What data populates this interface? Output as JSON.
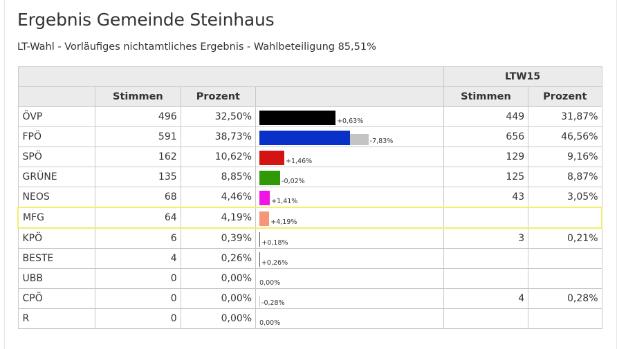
{
  "title": "Ergebnis Gemeinde Steinhaus",
  "subtitle": "LT-Wahl - Vorläufiges nichtamtliches Ergebnis - Wahlbeteiligung 85,51%",
  "header": {
    "group_right": "LTW15",
    "stimmen": "Stimmen",
    "prozent": "Prozent",
    "stimmen_prev": "Stimmen",
    "prozent_prev": "Prozent"
  },
  "chart_data": {
    "type": "bar",
    "categories": [
      "ÖVP",
      "FPÖ",
      "SPÖ",
      "GRÜNE",
      "NEOS",
      "MFG",
      "KPÖ",
      "BESTE",
      "UBB",
      "CPÖ",
      "R"
    ],
    "series": [
      {
        "name": "",
        "values": [
          32.5,
          38.73,
          10.62,
          8.85,
          4.46,
          4.19,
          0.39,
          0.26,
          0.0,
          0.0,
          0.0
        ]
      },
      {
        "name": "LTW15",
        "values": [
          31.87,
          46.56,
          9.16,
          8.87,
          3.05,
          0,
          0.21,
          0,
          0,
          0.28,
          0
        ]
      }
    ],
    "colors": [
      "#000000",
      "#0a31c7",
      "#d41313",
      "#2f9a06",
      "#f014e6",
      "#f7957a",
      "#555555",
      "#555555",
      "#555555",
      "#555555",
      "#555555"
    ],
    "prev_color": "#c4c4c4"
  },
  "rows": [
    {
      "party": "ÖVP",
      "stimmen": "496",
      "prozent": "32,50%",
      "diff": "+0,63%",
      "stimmen_prev": "449",
      "prozent_prev": "31,87%"
    },
    {
      "party": "FPÖ",
      "stimmen": "591",
      "prozent": "38,73%",
      "diff": "-7,83%",
      "stimmen_prev": "656",
      "prozent_prev": "46,56%"
    },
    {
      "party": "SPÖ",
      "stimmen": "162",
      "prozent": "10,62%",
      "diff": "+1,46%",
      "stimmen_prev": "129",
      "prozent_prev": "9,16%"
    },
    {
      "party": "GRÜNE",
      "stimmen": "135",
      "prozent": "8,85%",
      "diff": "-0,02%",
      "stimmen_prev": "125",
      "prozent_prev": "8,87%"
    },
    {
      "party": "NEOS",
      "stimmen": "68",
      "prozent": "4,46%",
      "diff": "+1,41%",
      "stimmen_prev": "43",
      "prozent_prev": "3,05%"
    },
    {
      "party": "MFG",
      "stimmen": "64",
      "prozent": "4,19%",
      "diff": "+4,19%",
      "stimmen_prev": "",
      "prozent_prev": ""
    },
    {
      "party": "KPÖ",
      "stimmen": "6",
      "prozent": "0,39%",
      "diff": "+0,18%",
      "stimmen_prev": "3",
      "prozent_prev": "0,21%"
    },
    {
      "party": "BESTE",
      "stimmen": "4",
      "prozent": "0,26%",
      "diff": "+0,26%",
      "stimmen_prev": "",
      "prozent_prev": ""
    },
    {
      "party": "UBB",
      "stimmen": "0",
      "prozent": "0,00%",
      "diff": "0,00%",
      "stimmen_prev": "",
      "prozent_prev": ""
    },
    {
      "party": "CPÖ",
      "stimmen": "0",
      "prozent": "0,00%",
      "diff": "-0,28%",
      "stimmen_prev": "4",
      "prozent_prev": "0,28%"
    },
    {
      "party": "R",
      "stimmen": "0",
      "prozent": "0,00%",
      "diff": "0,00%",
      "stimmen_prev": "",
      "prozent_prev": ""
    }
  ],
  "highlight_party": "MFG"
}
